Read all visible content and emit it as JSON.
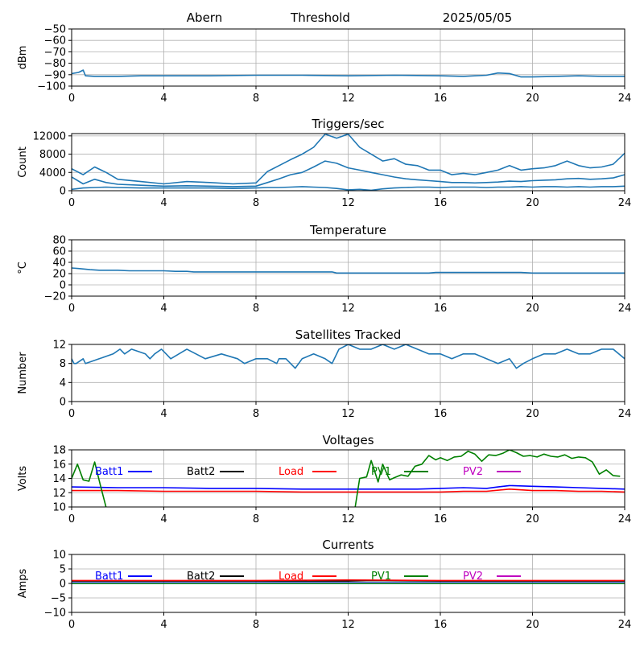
{
  "header": {
    "station": "Abern",
    "mode": "Threshold",
    "date": "2025/05/05"
  },
  "colors": {
    "series_blue": "#1f77b4",
    "grid": "#b0b0b0",
    "batt1": "#0000ff",
    "batt2": "#000000",
    "load": "#ff0000",
    "pv1": "#008000",
    "pv2": "#bf00bf"
  },
  "chart_data": [
    {
      "type": "line",
      "title": "",
      "xlabel": "",
      "ylabel": "dBm",
      "xlim": [
        0,
        24
      ],
      "ylim": [
        -100,
        -50
      ],
      "xticks": [
        0,
        4,
        8,
        12,
        16,
        20,
        24
      ],
      "yticks": [
        -100,
        -90,
        -80,
        -70,
        -60,
        -50
      ],
      "grid": true,
      "series": [
        {
          "x": [
            0,
            0.3,
            0.5,
            0.6,
            1,
            2,
            3,
            4,
            6,
            8,
            10,
            12,
            14,
            16,
            17,
            18,
            18.5,
            19,
            19.5,
            20,
            21,
            22,
            23,
            24
          ],
          "y": [
            -89,
            -88,
            -86,
            -91,
            -91.5,
            -91.5,
            -91,
            -91,
            -91,
            -90.5,
            -90.5,
            -91,
            -90.5,
            -91,
            -91.5,
            -90.5,
            -88.5,
            -89,
            -92,
            -92,
            -91.5,
            -91,
            -91.5,
            -91.5
          ]
        }
      ]
    },
    {
      "type": "line",
      "title": "Triggers/sec",
      "xlabel": "",
      "ylabel": "Count",
      "xlim": [
        0,
        24
      ],
      "ylim": [
        0,
        12500
      ],
      "xticks": [
        0,
        4,
        8,
        12,
        16,
        20,
        24
      ],
      "yticks": [
        0,
        4000,
        8000,
        12000
      ],
      "grid": true,
      "series": [
        {
          "x": [
            0,
            0.5,
            1,
            1.5,
            2,
            3,
            4,
            5,
            6,
            7,
            8,
            8.5,
            9,
            9.5,
            10,
            10.5,
            11,
            11.5,
            12,
            12.5,
            13,
            13.5,
            14,
            14.5,
            15,
            15.5,
            16,
            16.5,
            17,
            17.5,
            18,
            18.5,
            19,
            19.5,
            20,
            20.5,
            21,
            21.5,
            22,
            22.5,
            23,
            23.5,
            24
          ],
          "y": [
            3000,
            1500,
            2500,
            1800,
            1400,
            1200,
            1000,
            1100,
            1000,
            900,
            1000,
            1800,
            2600,
            3500,
            4000,
            5200,
            6500,
            6000,
            5000,
            4500,
            4000,
            3500,
            3000,
            2600,
            2400,
            2200,
            2000,
            1800,
            1800,
            1700,
            1800,
            1900,
            2100,
            2000,
            2200,
            2300,
            2400,
            2600,
            2700,
            2500,
            2600,
            2800,
            3500
          ]
        },
        {
          "x": [
            0,
            0.5,
            1,
            1.5,
            2,
            3,
            4,
            5,
            6,
            7,
            8,
            8.5,
            9,
            9.5,
            10,
            10.5,
            11,
            11.5,
            12,
            12.5,
            13,
            13.5,
            14,
            14.5,
            15,
            15.5,
            16,
            16.5,
            17,
            17.5,
            18,
            18.5,
            19,
            19.5,
            20,
            20.5,
            21,
            21.5,
            22,
            22.5,
            23,
            23.5,
            24
          ],
          "y": [
            4800,
            3500,
            5200,
            4000,
            2500,
            2000,
            1500,
            2000,
            1800,
            1500,
            1700,
            4200,
            5500,
            6800,
            8000,
            9500,
            12400,
            11500,
            12400,
            9500,
            8000,
            6500,
            7000,
            5800,
            5500,
            4500,
            4500,
            3500,
            3800,
            3500,
            4000,
            4500,
            5500,
            4500,
            4800,
            5000,
            5500,
            6500,
            5500,
            5000,
            5200,
            5800,
            8200
          ]
        },
        {
          "x": [
            0,
            0.5,
            1,
            1.5,
            2,
            3,
            4,
            5,
            6,
            7,
            8,
            8.5,
            9,
            9.5,
            10,
            10.5,
            11,
            11.5,
            12,
            12.5,
            13,
            13.5,
            14,
            14.5,
            15,
            15.5,
            16,
            16.5,
            17,
            17.5,
            18,
            18.5,
            19,
            19.5,
            20,
            20.5,
            21,
            21.5,
            22,
            22.5,
            23,
            23.5,
            24
          ],
          "y": [
            300,
            600,
            700,
            800,
            700,
            600,
            600,
            600,
            600,
            500,
            600,
            700,
            700,
            800,
            900,
            800,
            700,
            500,
            200,
            300,
            100,
            400,
            600,
            700,
            800,
            800,
            700,
            800,
            800,
            800,
            700,
            800,
            800,
            900,
            800,
            900,
            900,
            800,
            900,
            800,
            900,
            900,
            1000
          ]
        }
      ]
    },
    {
      "type": "line",
      "title": "Temperature",
      "xlabel": "",
      "ylabel": "°C",
      "xlim": [
        0,
        24
      ],
      "ylim": [
        -20,
        80
      ],
      "xticks": [
        0,
        4,
        8,
        12,
        16,
        20,
        24
      ],
      "yticks": [
        -20,
        0,
        20,
        40,
        60,
        80
      ],
      "grid": true,
      "series": [
        {
          "x": [
            0,
            0.3,
            0.8,
            1.2,
            2,
            2.5,
            3.5,
            4,
            4.5,
            5,
            5.3,
            6,
            8,
            10,
            11.3,
            11.5,
            12,
            14,
            15.5,
            15.8,
            16,
            18,
            19.5,
            20,
            21,
            22,
            24
          ],
          "y": [
            30,
            29,
            27,
            26,
            26,
            25,
            25,
            25,
            24,
            24,
            23,
            23,
            23,
            23,
            23,
            21,
            21,
            21,
            21,
            22,
            22,
            22,
            22,
            21,
            21,
            21,
            21
          ]
        }
      ]
    },
    {
      "type": "line",
      "title": "Satellites Tracked",
      "xlabel": "",
      "ylabel": "Number",
      "xlim": [
        0,
        24
      ],
      "ylim": [
        0,
        12
      ],
      "xticks": [
        0,
        4,
        8,
        12,
        16,
        20,
        24
      ],
      "yticks": [
        0,
        4,
        8,
        12
      ],
      "grid": true,
      "series": [
        {
          "x": [
            0,
            0.1,
            0.2,
            0.5,
            0.6,
            1.2,
            1.8,
            2.1,
            2.3,
            2.6,
            3.2,
            3.4,
            3.6,
            3.9,
            4.1,
            4.3,
            5.0,
            5.8,
            6.5,
            7.2,
            7.5,
            8.0,
            8.5,
            8.9,
            9.0,
            9.3,
            9.7,
            10.0,
            10.5,
            11.0,
            11.3,
            11.6,
            12.0,
            12.5,
            13.0,
            13.5,
            14.0,
            14.5,
            15.0,
            15.5,
            16.0,
            16.5,
            17.0,
            17.5,
            18.0,
            18.5,
            19.0,
            19.3,
            19.6,
            20.0,
            20.5,
            21.0,
            21.5,
            22.0,
            22.5,
            23.0,
            23.5,
            24
          ],
          "y": [
            9,
            8,
            8,
            9,
            8,
            9,
            10,
            11,
            10,
            11,
            10,
            9,
            10,
            11,
            10,
            9,
            11,
            9,
            10,
            9,
            8,
            9,
            9,
            8,
            9,
            9,
            7,
            9,
            10,
            9,
            8,
            11,
            12,
            11,
            11,
            12,
            11,
            12,
            11,
            10,
            10,
            9,
            10,
            10,
            9,
            8,
            9,
            7,
            8,
            9,
            10,
            10,
            11,
            10,
            10,
            11,
            11,
            9
          ]
        }
      ]
    },
    {
      "type": "line",
      "title": "Voltages",
      "xlabel": "",
      "ylabel": "Volts",
      "xlim": [
        0,
        24
      ],
      "ylim": [
        10,
        18
      ],
      "xticks": [
        0,
        4,
        8,
        12,
        16,
        20,
        24
      ],
      "yticks": [
        10,
        12,
        14,
        16,
        18
      ],
      "grid": true,
      "legend": "top, inline",
      "series": [
        {
          "name": "Batt1",
          "color_key": "batt1",
          "x": [
            0,
            2,
            4,
            6,
            8,
            10,
            12,
            14,
            15,
            16,
            17,
            18,
            18.5,
            19,
            20,
            21,
            22,
            23,
            24
          ],
          "y": [
            12.8,
            12.7,
            12.7,
            12.6,
            12.6,
            12.5,
            12.5,
            12.5,
            12.5,
            12.6,
            12.7,
            12.6,
            12.8,
            13.0,
            12.9,
            12.8,
            12.7,
            12.6,
            12.5
          ]
        },
        {
          "name": "Batt2",
          "color_key": "batt2",
          "x": [],
          "y": []
        },
        {
          "name": "Load",
          "color_key": "load",
          "x": [
            0,
            2,
            4,
            6,
            8,
            10,
            12,
            14,
            16,
            17,
            18,
            19,
            20,
            21,
            22,
            23,
            24
          ],
          "y": [
            12.3,
            12.3,
            12.2,
            12.2,
            12.2,
            12.1,
            12.1,
            12.1,
            12.1,
            12.2,
            12.2,
            12.5,
            12.3,
            12.3,
            12.2,
            12.2,
            12.1
          ]
        },
        {
          "name": "PV1",
          "color_key": "pv1",
          "x": [
            0,
            0.25,
            0.5,
            0.75,
            1.0,
            1.25,
            1.5,
            12.3,
            12.5,
            12.8,
            13.0,
            13.3,
            13.5,
            13.8,
            14.0,
            14.3,
            14.6,
            14.9,
            15.2,
            15.5,
            15.8,
            16.0,
            16.3,
            16.6,
            16.9,
            17.2,
            17.5,
            17.8,
            18.1,
            18.4,
            18.7,
            19.0,
            19.3,
            19.6,
            19.9,
            20.2,
            20.5,
            20.8,
            21.1,
            21.4,
            21.7,
            22.0,
            22.3,
            22.6,
            22.9,
            23.2,
            23.5,
            23.8
          ],
          "y": [
            14,
            16,
            13.8,
            13.6,
            16.3,
            13,
            9.9,
            9.9,
            14,
            14.2,
            16.5,
            13.5,
            16,
            13.8,
            14.1,
            14.5,
            14.3,
            15.7,
            16.0,
            17.2,
            16.6,
            16.9,
            16.5,
            17.0,
            17.1,
            17.8,
            17.4,
            16.4,
            17.3,
            17.2,
            17.5,
            18.0,
            17.6,
            17.1,
            17.2,
            17.0,
            17.4,
            17.1,
            17.0,
            17.3,
            16.8,
            17.0,
            16.9,
            16.3,
            14.6,
            15.2,
            14.4,
            14.3
          ]
        },
        {
          "name": "PV2",
          "color_key": "pv2",
          "x": [],
          "y": []
        }
      ]
    },
    {
      "type": "line",
      "title": "Currents",
      "xlabel": "",
      "ylabel": "Amps",
      "xlim": [
        0,
        24
      ],
      "ylim": [
        -10,
        10
      ],
      "xticks": [
        0,
        4,
        8,
        12,
        16,
        20,
        24
      ],
      "yticks": [
        -10,
        -5,
        0,
        5,
        10
      ],
      "grid": true,
      "legend": "top, inline",
      "series": [
        {
          "name": "Batt1",
          "color_key": "batt1",
          "x": [
            0,
            24
          ],
          "y": [
            0.2,
            0.2
          ]
        },
        {
          "name": "Batt2",
          "color_key": "batt2",
          "x": [
            0,
            4,
            8,
            12,
            13,
            16,
            20,
            24
          ],
          "y": [
            0.8,
            0.8,
            0.8,
            0.8,
            1.0,
            0.8,
            0.8,
            0.8
          ]
        },
        {
          "name": "Load",
          "color_key": "load",
          "x": [
            0,
            4,
            8,
            12,
            16,
            20,
            24
          ],
          "y": [
            1.0,
            1.0,
            1.0,
            1.2,
            1.0,
            1.0,
            1.0
          ]
        },
        {
          "name": "PV1",
          "color_key": "pv1",
          "x": [
            0,
            24
          ],
          "y": [
            0.0,
            0.0
          ]
        },
        {
          "name": "PV2",
          "color_key": "pv2",
          "x": [],
          "y": []
        }
      ]
    }
  ]
}
